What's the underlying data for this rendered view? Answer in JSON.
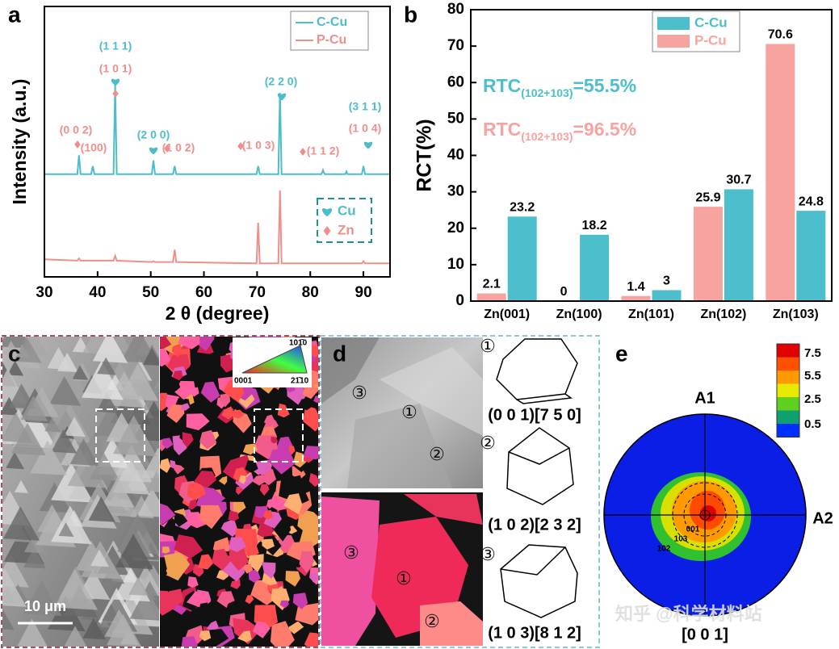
{
  "chart_data": [
    {
      "type": "line",
      "panel": "a",
      "xlabel": "2 θ (degree)",
      "ylabel": "Intensity (a.u.)",
      "xlim": [
        30,
        95
      ],
      "xticks": [
        30,
        40,
        50,
        60,
        70,
        80,
        90
      ],
      "ylim": [
        0,
        100
      ],
      "x": [
        30,
        36.2,
        36.5,
        36.8,
        38.8,
        39.1,
        39.4,
        43.0,
        43.3,
        43.6,
        50.2,
        50.5,
        50.8,
        54.2,
        54.5,
        54.8,
        69.9,
        70.2,
        70.5,
        74.0,
        74.3,
        74.6,
        82.1,
        82.4,
        82.7,
        86.6,
        86.8,
        87.0,
        89.7,
        90.0,
        90.3,
        95
      ],
      "series": [
        {
          "name": "C-Cu",
          "color": "#4dbdca",
          "values": [
            38,
            38,
            45,
            38,
            38,
            41,
            38,
            38,
            71,
            38,
            38,
            43,
            38,
            38,
            41,
            38,
            38,
            41,
            38,
            38,
            68,
            38,
            38,
            39.5,
            38,
            38,
            39,
            38,
            38,
            41,
            38,
            38
          ]
        },
        {
          "name": "P-Cu",
          "color": "#ef8f8b",
          "values": [
            6.5,
            6,
            6.8,
            6,
            6,
            6,
            6,
            6,
            7.8,
            6,
            5.5,
            5.8,
            5.5,
            5.5,
            10,
            5.5,
            5,
            20,
            5,
            5,
            32,
            5,
            5,
            5,
            5,
            5,
            5,
            5,
            5,
            5.8,
            5,
            5
          ]
        }
      ],
      "annotations": [
        {
          "text": "(1 1 1)",
          "color": "#4dbdca"
        },
        {
          "text": "(1 0 1)",
          "color": "#ef8f8b"
        },
        {
          "text": "(2 2 0)",
          "color": "#4dbdca"
        },
        {
          "text": "(0 0 2)",
          "color": "#ef8f8b"
        },
        {
          "text": "(100)",
          "color": "#ef8f8b"
        },
        {
          "text": "(2 0 0)",
          "color": "#4dbdca"
        },
        {
          "text": "(1 0 2)",
          "color": "#ef8f8b"
        },
        {
          "text": "(1 0 3)",
          "color": "#ef8f8b"
        },
        {
          "text": "(1 1 2)",
          "color": "#ef8f8b"
        },
        {
          "text": "(3 1 1)",
          "color": "#4dbdca"
        },
        {
          "text": "(1 0 4)",
          "color": "#ef8f8b"
        }
      ],
      "marker_legend": [
        {
          "name": "Cu",
          "color": "#4dbdca"
        },
        {
          "name": "Zn",
          "color": "#ef8f8b"
        }
      ]
    },
    {
      "type": "bar",
      "panel": "b",
      "ylabel": "RCT(%)",
      "categories": [
        "Zn(001)",
        "Zn(100)",
        "Zn(101)",
        "Zn(102)",
        "Zn(103)"
      ],
      "ylim": [
        0,
        80
      ],
      "yticks": [
        0,
        10,
        20,
        30,
        40,
        50,
        60,
        70,
        80
      ],
      "series": [
        {
          "name": "C-Cu",
          "color": "#4dbfcc",
          "values": [
            23.2,
            18.2,
            3,
            30.7,
            24.8
          ]
        },
        {
          "name": "P-Cu",
          "color": "#f7a3a0",
          "values": [
            2.1,
            0,
            1.4,
            25.9,
            70.6
          ]
        }
      ],
      "annotations": [
        {
          "text": "RTC",
          "sub": "(102+103)",
          "tail": "=55.5%",
          "color": "#4dbfcc"
        },
        {
          "text": "RTC",
          "sub": "(102+103)",
          "tail": "=96.5%",
          "color": "#f7a3a0"
        }
      ]
    }
  ],
  "panel_c": {
    "panel": "c",
    "scale_bar": "10 μm",
    "color_key": [
      "101̄0",
      "0001",
      "21̄10"
    ]
  },
  "panel_d": {
    "panel": "d",
    "markers": [
      "①",
      "②",
      "③"
    ],
    "orientations": [
      "(0 0 1)[7 5 0]",
      "(1 0 2)[2 3 2]",
      "(1 0 3)[8 1 2]"
    ]
  },
  "panel_e": {
    "panel": "e",
    "axes": [
      "A1",
      "A2"
    ],
    "direction": "[0 0 1]",
    "colorbar_ticks": [
      "7.5",
      "5.5",
      "2.5",
      "0.5"
    ],
    "contour_labels": [
      "001",
      "103",
      "102"
    ]
  },
  "watermark": "知乎 @科学材料站"
}
